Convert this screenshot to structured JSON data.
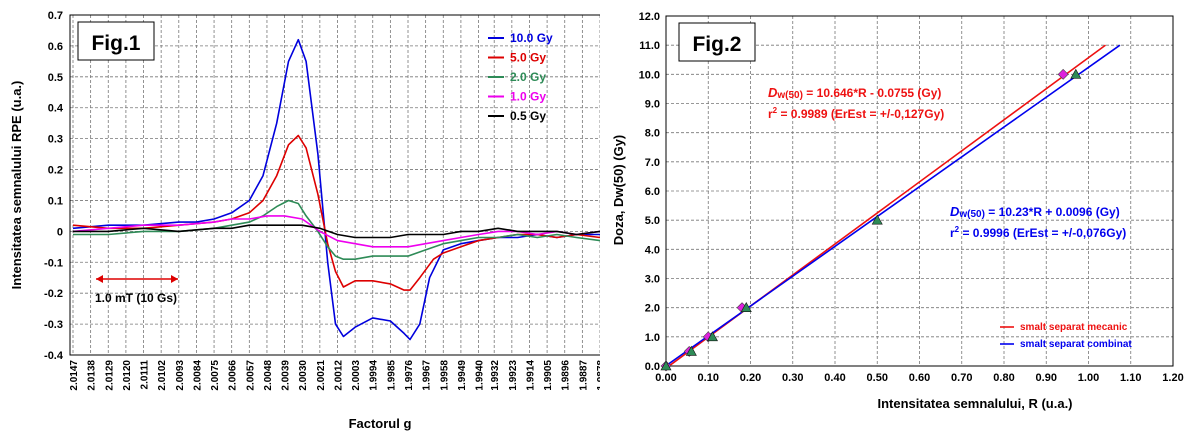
{
  "chart_data": [
    {
      "type": "line",
      "fig_label": "Fig.1",
      "xlabel": "Factorul g",
      "ylabel": "Intensitatea semnalului RPE (u.a.)",
      "ylim": [
        -0.4,
        0.7
      ],
      "yticks": [
        "-0.4",
        "-0.3",
        "-0.2",
        "-0.1",
        "0",
        "0.1",
        "0.2",
        "0.3",
        "0.4",
        "0.5",
        "0.6",
        "0.7"
      ],
      "xticks": [
        "2.0147",
        "2.0138",
        "2.0129",
        "2.0120",
        "2.0111",
        "2.0102",
        "2.0093",
        "2.0084",
        "2.0075",
        "2.0066",
        "2.0057",
        "2.0048",
        "2.0039",
        "2.0030",
        "2.0021",
        "2.0012",
        "2.0003",
        "1.9994",
        "1.9985",
        "1.9976",
        "1.9967",
        "1.9958",
        "1.9949",
        "1.9940",
        "1.9932",
        "1.9923",
        "1.9914",
        "1.9905",
        "1.9896",
        "1.9887",
        "1.9878"
      ],
      "grid": true,
      "legend_position": "upper-right",
      "annotation": "1.0 mT (10 Gs)",
      "series": [
        {
          "name": "10.0 Gy",
          "color": "#0000dd",
          "x": [
            2.0147,
            2.0129,
            2.0111,
            2.0093,
            2.0084,
            2.0075,
            2.0066,
            2.0057,
            2.005,
            2.0043,
            2.0037,
            2.0032,
            2.0028,
            2.0022,
            2.0017,
            2.0013,
            2.0009,
            2.0003,
            1.9994,
            1.9985,
            1.9978,
            1.9975,
            1.997,
            1.9965,
            1.9958,
            1.9949,
            1.994,
            1.993,
            1.992,
            1.991,
            1.99,
            1.989,
            1.9878
          ],
          "y": [
            0.01,
            0.02,
            0.02,
            0.03,
            0.03,
            0.04,
            0.06,
            0.1,
            0.18,
            0.35,
            0.55,
            0.62,
            0.55,
            0.25,
            -0.1,
            -0.3,
            -0.34,
            -0.31,
            -0.28,
            -0.29,
            -0.33,
            -0.35,
            -0.3,
            -0.15,
            -0.06,
            -0.04,
            -0.03,
            -0.02,
            -0.02,
            -0.01,
            -0.02,
            -0.01,
            -0.01
          ]
        },
        {
          "name": "5.0 Gy",
          "color": "#dd0000",
          "x": [
            2.0147,
            2.0129,
            2.0111,
            2.0093,
            2.0075,
            2.0066,
            2.0057,
            2.005,
            2.0043,
            2.0037,
            2.0032,
            2.0028,
            2.0022,
            2.0017,
            2.0013,
            2.0009,
            2.0003,
            1.9994,
            1.9985,
            1.9978,
            1.9975,
            1.997,
            1.9963,
            1.9958,
            1.9949,
            1.994,
            1.993,
            1.992,
            1.991,
            1.99,
            1.989,
            1.9878
          ],
          "y": [
            0.02,
            0.01,
            0.01,
            0.02,
            0.03,
            0.04,
            0.06,
            0.1,
            0.18,
            0.28,
            0.31,
            0.27,
            0.12,
            -0.04,
            -0.13,
            -0.18,
            -0.16,
            -0.16,
            -0.17,
            -0.19,
            -0.19,
            -0.15,
            -0.09,
            -0.07,
            -0.05,
            -0.03,
            -0.02,
            -0.01,
            -0.01,
            -0.02,
            -0.01,
            -0.02
          ]
        },
        {
          "name": "2.0 Gy",
          "color": "#2e8b57",
          "x": [
            2.0147,
            2.0129,
            2.0111,
            2.0093,
            2.0075,
            2.0066,
            2.0057,
            2.005,
            2.0043,
            2.0037,
            2.0032,
            2.0028,
            2.0022,
            2.0017,
            2.0013,
            2.0009,
            2.0003,
            1.9994,
            1.9985,
            1.9976,
            1.9967,
            1.9958,
            1.9949,
            1.994,
            1.993,
            1.992,
            1.991,
            1.99,
            1.989,
            1.9878
          ],
          "y": [
            -0.01,
            -0.01,
            0.0,
            0.0,
            0.01,
            0.02,
            0.03,
            0.05,
            0.08,
            0.1,
            0.09,
            0.05,
            0.0,
            -0.05,
            -0.08,
            -0.09,
            -0.09,
            -0.08,
            -0.08,
            -0.08,
            -0.06,
            -0.04,
            -0.03,
            -0.02,
            -0.02,
            -0.01,
            -0.02,
            -0.01,
            -0.02,
            -0.03
          ]
        },
        {
          "name": "1.0 Gy",
          "color": "#ee00ee",
          "x": [
            2.0147,
            2.0129,
            2.0111,
            2.0093,
            2.0075,
            2.0066,
            2.0057,
            2.0048,
            2.0039,
            2.003,
            2.0021,
            2.0012,
            2.0003,
            1.9994,
            1.9985,
            1.9976,
            1.9967,
            1.9958,
            1.9949,
            1.994,
            1.993,
            1.992,
            1.991,
            1.99,
            1.989,
            1.9878
          ],
          "y": [
            0.0,
            0.01,
            0.02,
            0.02,
            0.03,
            0.04,
            0.04,
            0.05,
            0.05,
            0.04,
            0.0,
            -0.03,
            -0.04,
            -0.05,
            -0.05,
            -0.05,
            -0.04,
            -0.03,
            -0.02,
            -0.01,
            0.0,
            0.0,
            -0.01,
            0.0,
            -0.01,
            0.0
          ]
        },
        {
          "name": "0.5 Gy",
          "color": "#000000",
          "x": [
            2.0147,
            2.0129,
            2.0111,
            2.0093,
            2.0075,
            2.0066,
            2.0057,
            2.0048,
            2.0039,
            2.003,
            2.0021,
            2.0012,
            2.0003,
            1.9994,
            1.9985,
            1.9976,
            1.9967,
            1.9958,
            1.9949,
            1.994,
            1.993,
            1.992,
            1.991,
            1.99,
            1.989,
            1.9878
          ],
          "y": [
            0.0,
            0.0,
            0.01,
            0.0,
            0.01,
            0.01,
            0.02,
            0.02,
            0.02,
            0.02,
            0.01,
            -0.01,
            -0.02,
            -0.02,
            -0.02,
            -0.01,
            -0.01,
            -0.01,
            0.0,
            0.0,
            0.01,
            0.0,
            0.0,
            0.0,
            -0.01,
            0.0
          ]
        }
      ]
    },
    {
      "type": "scatter",
      "fig_label": "Fig.2",
      "xlabel": "Intensitatea semnalului, R (u.a.)",
      "ylabel": "Doza, Dw(50) (Gy)",
      "xlim": [
        0.0,
        1.2
      ],
      "ylim": [
        0.0,
        12.0
      ],
      "xticks": [
        "0.00",
        "0.10",
        "0.20",
        "0.30",
        "0.40",
        "0.50",
        "0.60",
        "0.70",
        "0.80",
        "0.90",
        "1.00",
        "1.10",
        "1.20"
      ],
      "yticks": [
        "0.0",
        "1.0",
        "2.0",
        "3.0",
        "4.0",
        "5.0",
        "6.0",
        "7.0",
        "8.0",
        "9.0",
        "10.0",
        "11.0",
        "12.0"
      ],
      "grid": true,
      "legend_position": "lower-right",
      "series": [
        {
          "name": "smalt separat mecanic",
          "color": "#ee1111",
          "marker_color": "#dd22dd",
          "x": [
            0.0,
            0.055,
            0.1,
            0.18,
            0.94
          ],
          "y": [
            0.0,
            0.5,
            1.0,
            2.0,
            10.0
          ],
          "fit": {
            "slope": 10.646,
            "intercept": -0.0755
          },
          "equation": "= 10.646*R - 0.0755 (Gy)",
          "r2": "= 0.9989 (ErEst = +/-0,127Gy)"
        },
        {
          "name": "smalt separat combinat",
          "color": "#0000ee",
          "marker_color": "#2e8b57",
          "x": [
            0.0,
            0.06,
            0.11,
            0.19,
            0.5,
            0.97
          ],
          "y": [
            0.0,
            0.5,
            1.0,
            2.0,
            5.0,
            10.0
          ],
          "fit": {
            "slope": 10.23,
            "intercept": 0.0096
          },
          "equation": "= 10.23*R + 0.0096 (Gy)",
          "r2": "= 0.9996 (ErEst = +/-0,076Gy)"
        }
      ],
      "annotation_symbol": "D",
      "annotation_subscript": "w(50)",
      "r_prefix": "r"
    }
  ]
}
